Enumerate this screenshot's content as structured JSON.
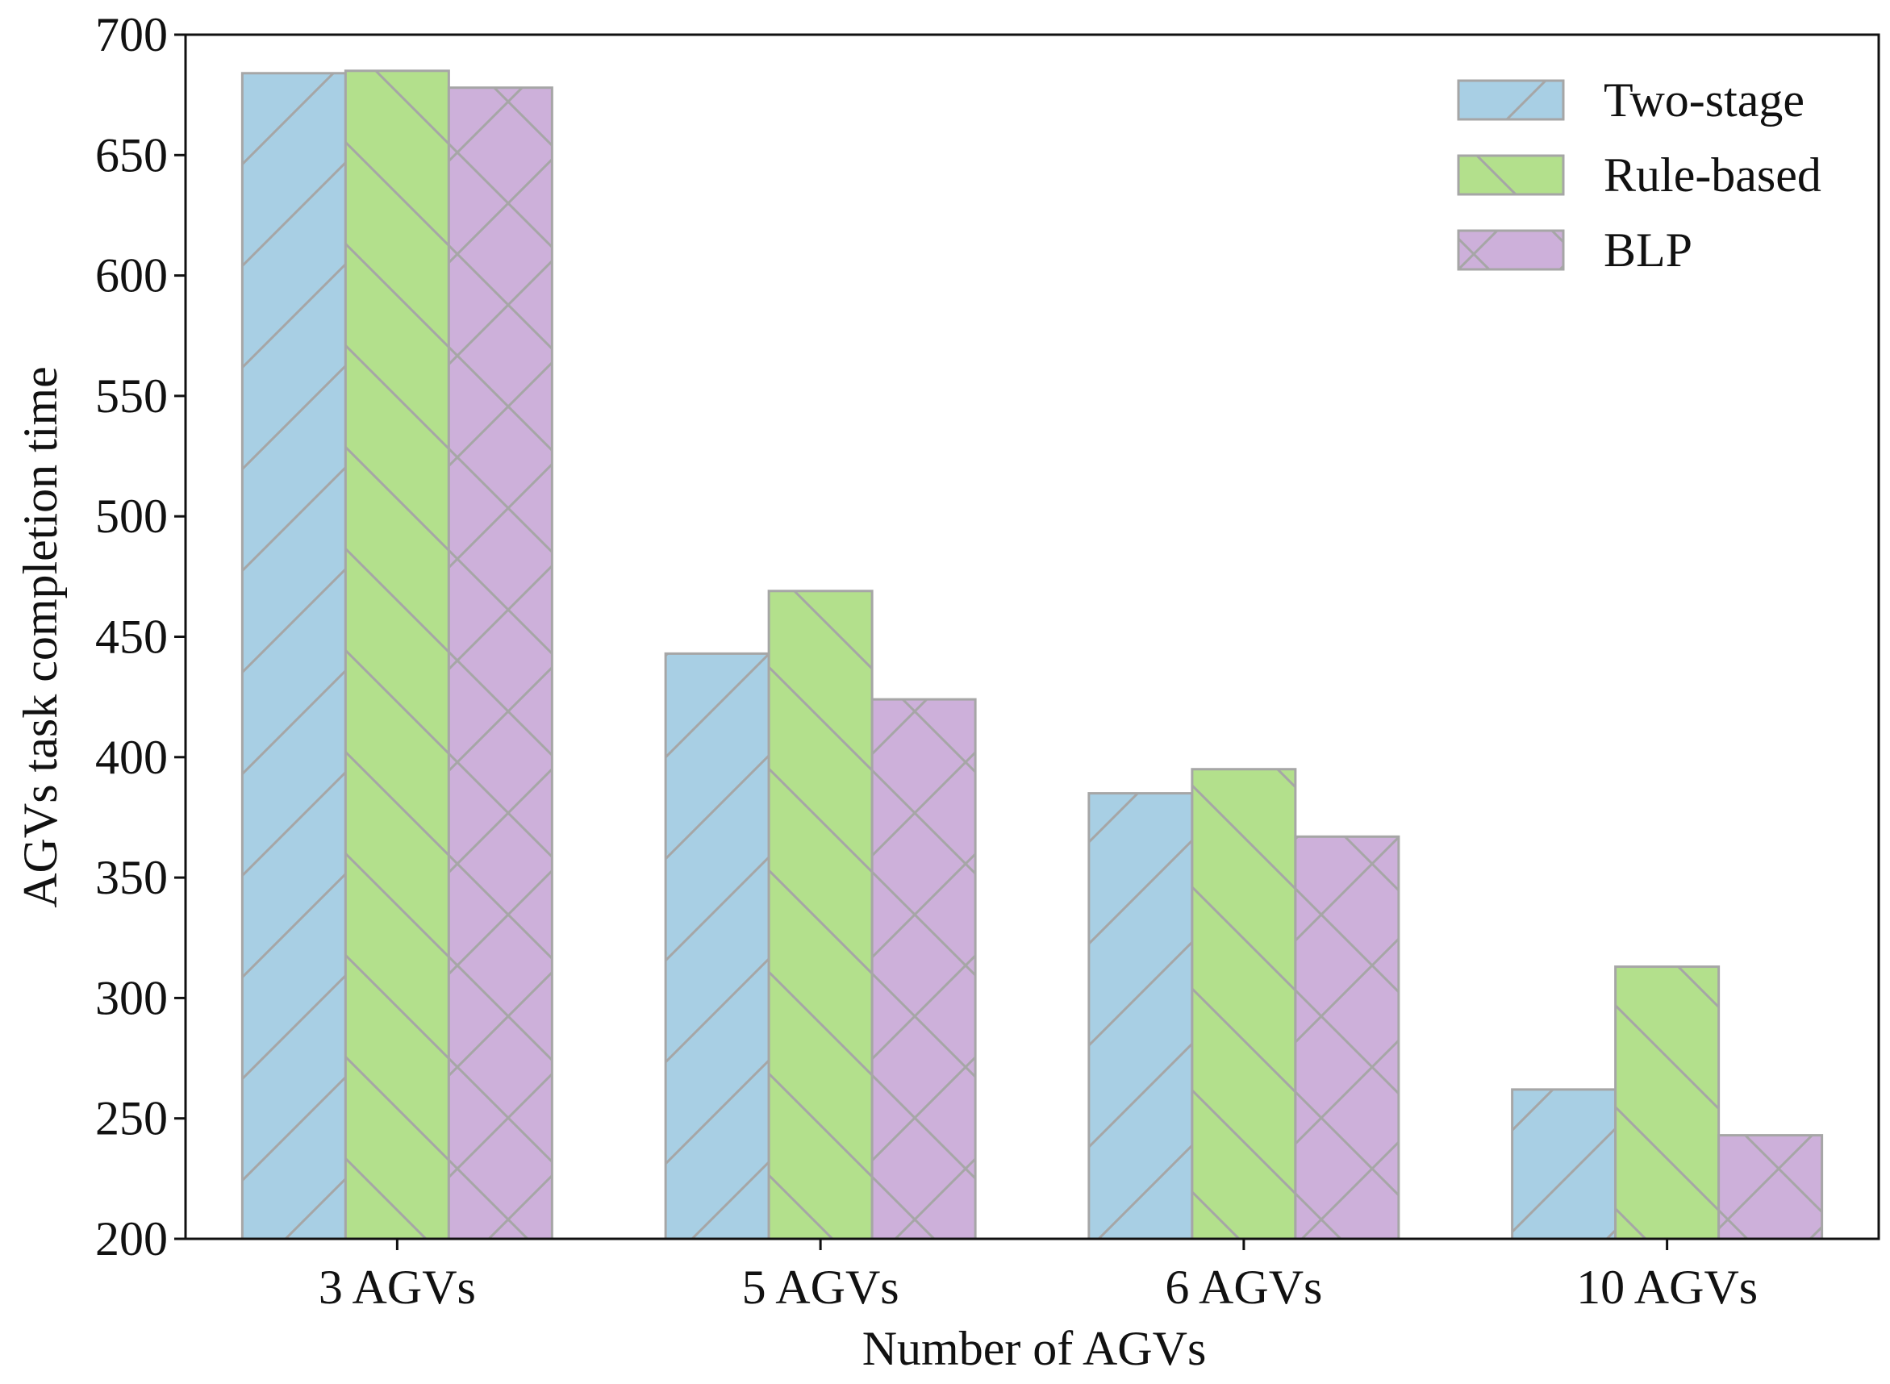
{
  "chart_data": {
    "type": "bar",
    "title": "",
    "xlabel": "Number of AGVs",
    "ylabel": "AGVs task completion time",
    "categories": [
      "3 AGVs",
      "5 AGVs",
      "6 AGVs",
      "10 AGVs"
    ],
    "series": [
      {
        "name": "Two-stage",
        "values": [
          684,
          443,
          385,
          262
        ],
        "color": "#a8cfe4",
        "hatch": "forward-diagonal"
      },
      {
        "name": "Rule-based",
        "values": [
          685,
          469,
          395,
          313
        ],
        "color": "#b3e08c",
        "hatch": "back-diagonal"
      },
      {
        "name": "BLP",
        "values": [
          678,
          424,
          367,
          243
        ],
        "color": "#cdb0da",
        "hatch": "cross-diagonal"
      }
    ],
    "ylim": [
      200,
      700
    ],
    "yticks": [
      "200",
      "250",
      "300",
      "350",
      "400",
      "450",
      "500",
      "550",
      "600",
      "650",
      "700"
    ],
    "grid": false,
    "legend_position": "top-right",
    "edge_color": "#a6a6a6"
  }
}
